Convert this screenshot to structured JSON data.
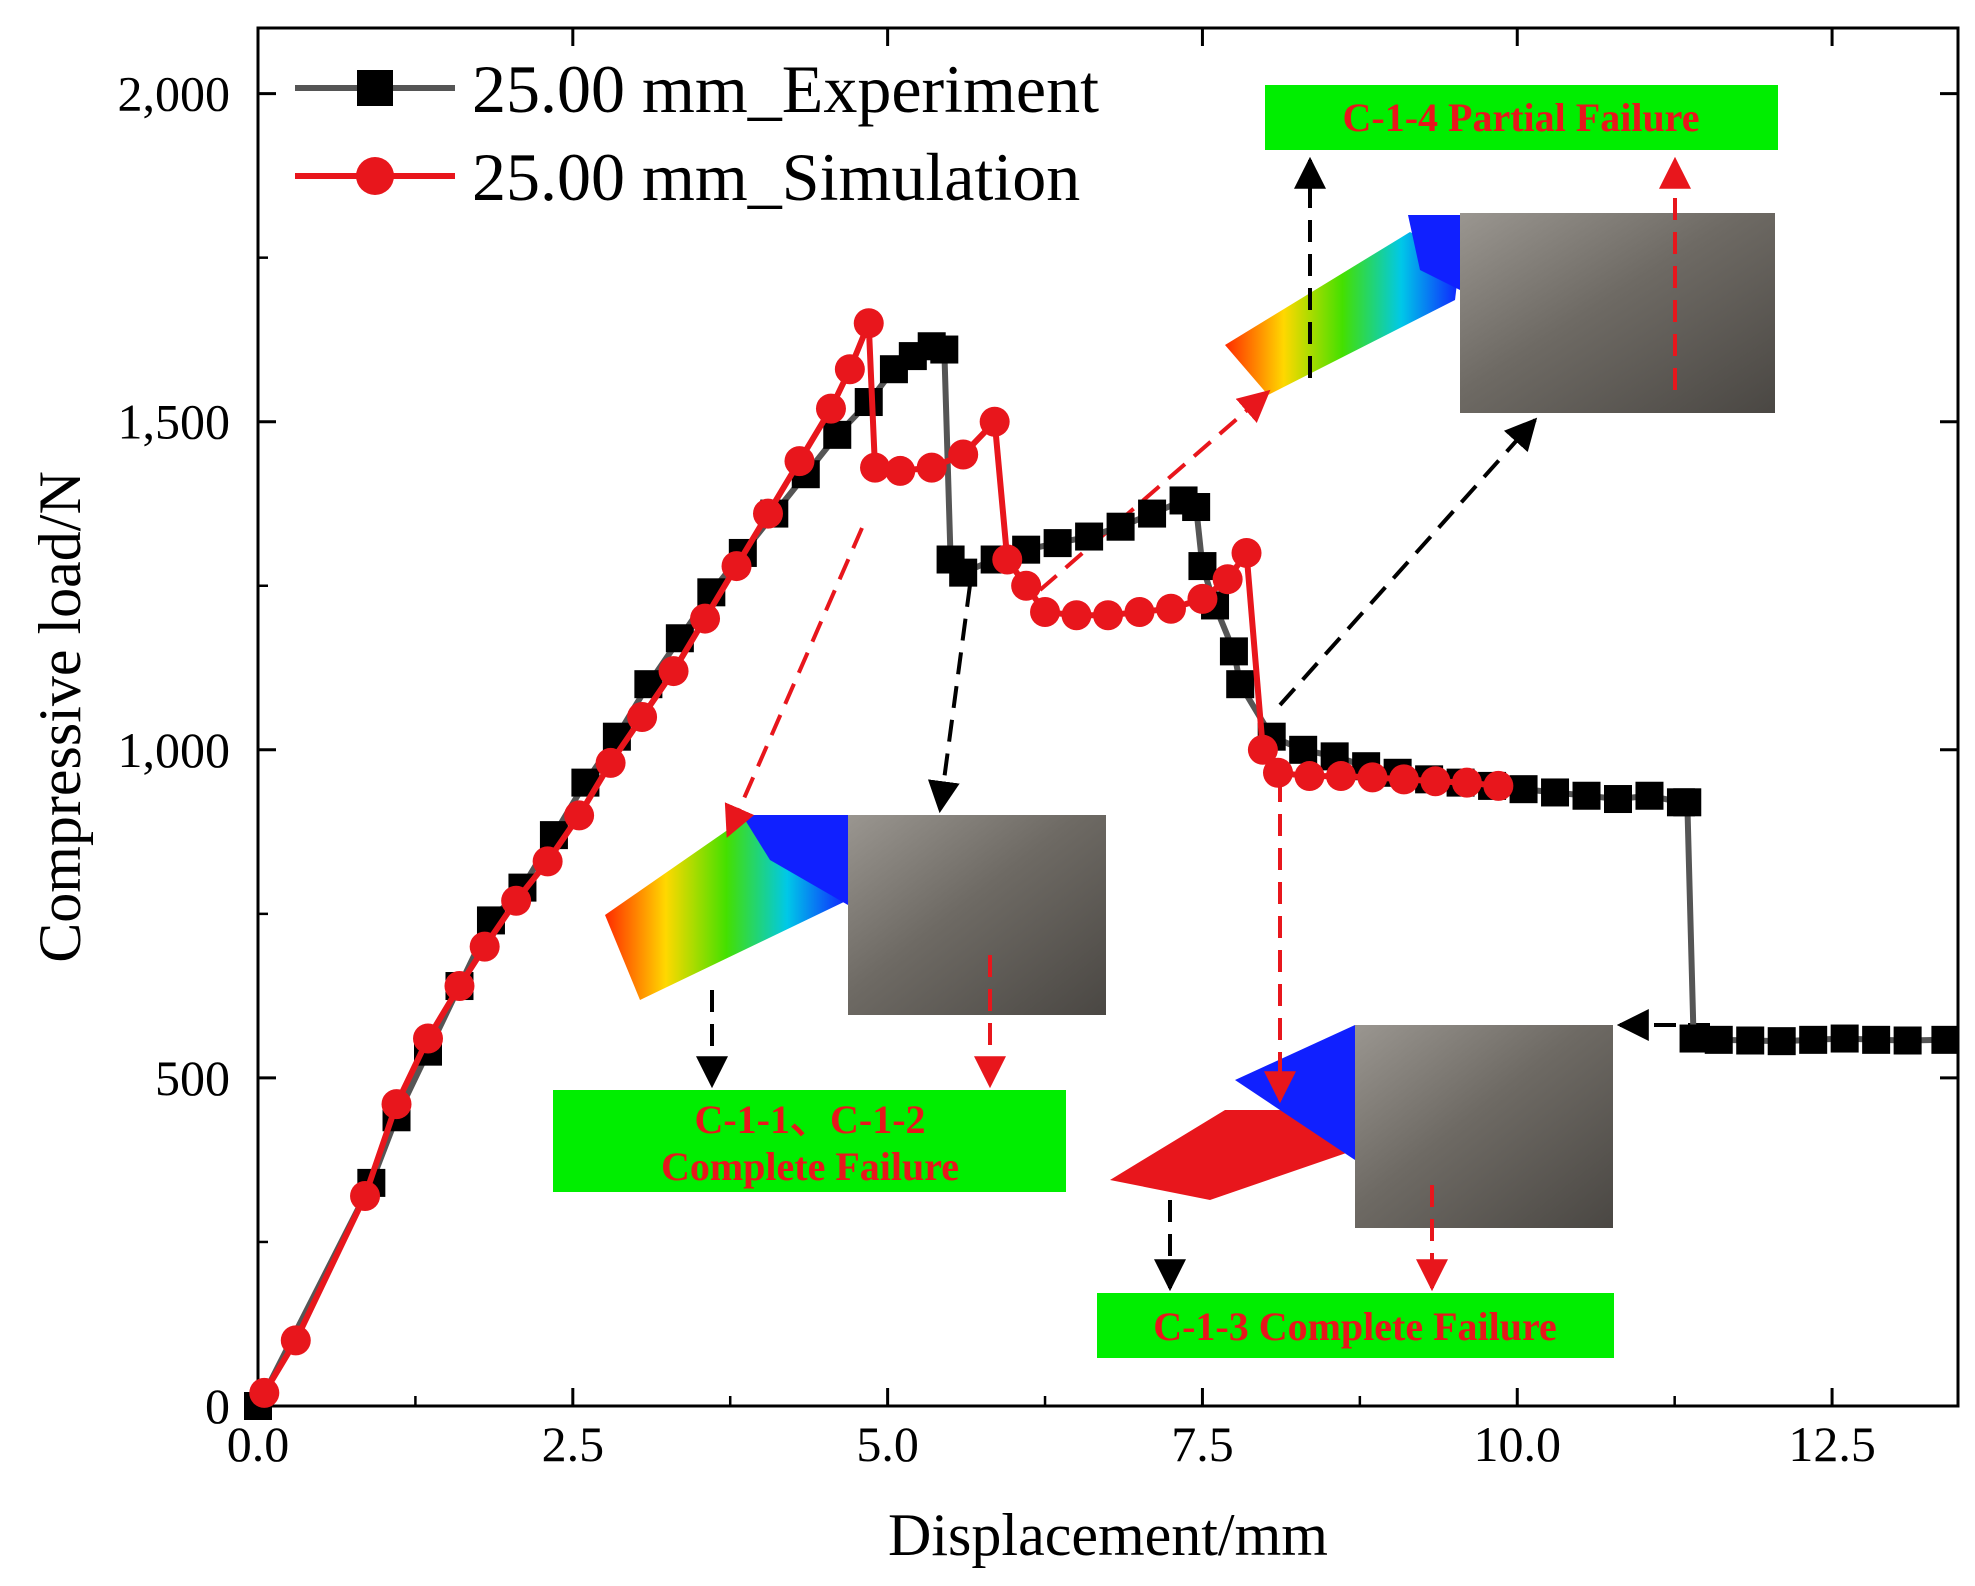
{
  "chart_data": {
    "type": "line",
    "xlabel": "Displacement/mm",
    "ylabel": "Compressive load/N",
    "xlim": [
      0,
      13.5
    ],
    "ylim": [
      0,
      2100
    ],
    "x_ticks": [
      0,
      2.5,
      5,
      7.5,
      10,
      12.5
    ],
    "x_tick_labels": [
      "0.0",
      "2.5",
      "5.0",
      "7.5",
      "10.0",
      "12.5"
    ],
    "y_ticks": [
      0,
      500,
      1000,
      1500,
      2000
    ],
    "y_tick_labels": [
      "0",
      "500",
      "1,000",
      "1,500",
      "2,000"
    ],
    "legend_position": "top-left",
    "series": [
      {
        "name": "25.00 mm_Experiment",
        "color": "#000000",
        "line_color": "#555555",
        "marker": "square",
        "points": [
          [
            0,
            0
          ],
          [
            0.9,
            340
          ],
          [
            1.1,
            440
          ],
          [
            1.35,
            540
          ],
          [
            1.6,
            640
          ],
          [
            1.85,
            740
          ],
          [
            2.1,
            790
          ],
          [
            2.35,
            870
          ],
          [
            2.6,
            950
          ],
          [
            2.85,
            1020
          ],
          [
            3.1,
            1100
          ],
          [
            3.35,
            1170
          ],
          [
            3.6,
            1240
          ],
          [
            3.85,
            1300
          ],
          [
            4.1,
            1360
          ],
          [
            4.35,
            1420
          ],
          [
            4.6,
            1480
          ],
          [
            4.85,
            1530
          ],
          [
            5.05,
            1580
          ],
          [
            5.2,
            1600
          ],
          [
            5.35,
            1615
          ],
          [
            5.45,
            1610
          ],
          [
            5.5,
            1290
          ],
          [
            5.6,
            1270
          ],
          [
            5.85,
            1290
          ],
          [
            6.1,
            1305
          ],
          [
            6.35,
            1315
          ],
          [
            6.6,
            1325
          ],
          [
            6.85,
            1340
          ],
          [
            7.1,
            1360
          ],
          [
            7.35,
            1380
          ],
          [
            7.45,
            1370
          ],
          [
            7.5,
            1280
          ],
          [
            7.6,
            1220
          ],
          [
            7.75,
            1150
          ],
          [
            7.8,
            1100
          ],
          [
            8.05,
            1020
          ],
          [
            8.3,
            1000
          ],
          [
            8.55,
            990
          ],
          [
            8.8,
            975
          ],
          [
            9.05,
            965
          ],
          [
            9.3,
            955
          ],
          [
            9.55,
            950
          ],
          [
            9.8,
            945
          ],
          [
            10.05,
            940
          ],
          [
            10.3,
            935
          ],
          [
            10.55,
            930
          ],
          [
            10.8,
            925
          ],
          [
            11.05,
            930
          ],
          [
            11.3,
            920
          ],
          [
            11.35,
            920
          ],
          [
            11.4,
            560
          ],
          [
            11.6,
            558
          ],
          [
            11.85,
            557
          ],
          [
            12.1,
            556
          ],
          [
            12.35,
            558
          ],
          [
            12.6,
            560
          ],
          [
            12.85,
            558
          ],
          [
            13.1,
            557
          ],
          [
            13.4,
            558
          ]
        ]
      },
      {
        "name": "25.00 mm_Simulation",
        "color": "#e8161c",
        "line_color": "#e8161c",
        "marker": "circle",
        "points": [
          [
            0.05,
            20
          ],
          [
            0.3,
            100
          ],
          [
            0.85,
            320
          ],
          [
            1.1,
            460
          ],
          [
            1.35,
            560
          ],
          [
            1.6,
            640
          ],
          [
            1.8,
            700
          ],
          [
            2.05,
            770
          ],
          [
            2.3,
            830
          ],
          [
            2.55,
            900
          ],
          [
            2.8,
            980
          ],
          [
            3.05,
            1050
          ],
          [
            3.3,
            1120
          ],
          [
            3.55,
            1200
          ],
          [
            3.8,
            1280
          ],
          [
            4.05,
            1360
          ],
          [
            4.3,
            1440
          ],
          [
            4.55,
            1520
          ],
          [
            4.7,
            1580
          ],
          [
            4.85,
            1650
          ],
          [
            4.9,
            1430
          ],
          [
            5.1,
            1425
          ],
          [
            5.35,
            1430
          ],
          [
            5.6,
            1450
          ],
          [
            5.85,
            1500
          ],
          [
            5.95,
            1290
          ],
          [
            6.1,
            1250
          ],
          [
            6.25,
            1210
          ],
          [
            6.5,
            1205
          ],
          [
            6.75,
            1205
          ],
          [
            7.0,
            1210
          ],
          [
            7.25,
            1215
          ],
          [
            7.5,
            1230
          ],
          [
            7.7,
            1260
          ],
          [
            7.85,
            1300
          ],
          [
            7.98,
            1000
          ],
          [
            8.1,
            965
          ],
          [
            8.35,
            960
          ],
          [
            8.6,
            960
          ],
          [
            8.85,
            958
          ],
          [
            9.1,
            955
          ],
          [
            9.35,
            952
          ],
          [
            9.6,
            950
          ],
          [
            9.85,
            945
          ]
        ]
      }
    ],
    "annotations": [
      {
        "text": "C-1-4 Partial Failure",
        "box_color": "#00ee00",
        "text_color": "#e8161c"
      },
      {
        "text_lines": [
          "C-1-1、C-1-2",
          "Complete Failure"
        ],
        "box_color": "#00ee00",
        "text_color": "#e8161c"
      },
      {
        "text": "C-1-3 Complete Failure",
        "box_color": "#00ee00",
        "text_color": "#e8161c"
      }
    ]
  }
}
